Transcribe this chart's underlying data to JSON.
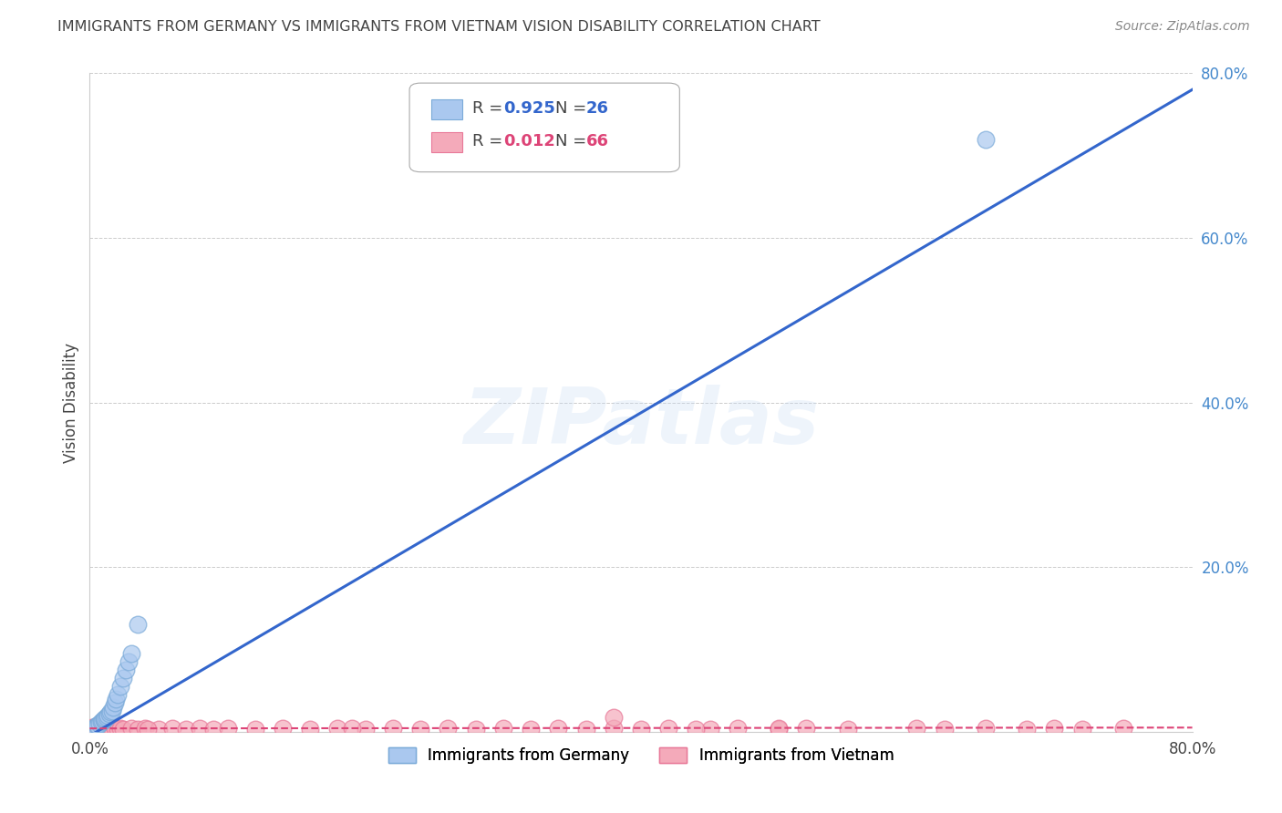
{
  "title": "IMMIGRANTS FROM GERMANY VS IMMIGRANTS FROM VIETNAM VISION DISABILITY CORRELATION CHART",
  "source": "Source: ZipAtlas.com",
  "ylabel": "Vision Disability",
  "watermark": "ZIPatlas",
  "germany_scatter_x": [
    0.003,
    0.004,
    0.005,
    0.006,
    0.007,
    0.008,
    0.009,
    0.01,
    0.01,
    0.011,
    0.012,
    0.013,
    0.014,
    0.015,
    0.016,
    0.017,
    0.018,
    0.019,
    0.02,
    0.022,
    0.024,
    0.026,
    0.028,
    0.03,
    0.035,
    0.65
  ],
  "germany_scatter_y": [
    0.004,
    0.005,
    0.007,
    0.008,
    0.01,
    0.012,
    0.013,
    0.014,
    0.015,
    0.016,
    0.018,
    0.02,
    0.022,
    0.024,
    0.025,
    0.03,
    0.035,
    0.04,
    0.045,
    0.055,
    0.065,
    0.075,
    0.085,
    0.095,
    0.13,
    0.72
  ],
  "vietnam_scatter_x": [
    0.002,
    0.003,
    0.004,
    0.004,
    0.005,
    0.005,
    0.006,
    0.006,
    0.007,
    0.007,
    0.008,
    0.008,
    0.009,
    0.01,
    0.011,
    0.012,
    0.013,
    0.014,
    0.015,
    0.016,
    0.018,
    0.02,
    0.022,
    0.024,
    0.03,
    0.035,
    0.04,
    0.05,
    0.06,
    0.07,
    0.08,
    0.09,
    0.1,
    0.12,
    0.14,
    0.16,
    0.18,
    0.2,
    0.22,
    0.24,
    0.26,
    0.28,
    0.3,
    0.32,
    0.34,
    0.36,
    0.38,
    0.4,
    0.42,
    0.45,
    0.47,
    0.5,
    0.52,
    0.38,
    0.042,
    0.19,
    0.44,
    0.5,
    0.55,
    0.6,
    0.62,
    0.65,
    0.68,
    0.7,
    0.72,
    0.75
  ],
  "vietnam_scatter_y": [
    0.005,
    0.004,
    0.005,
    0.003,
    0.004,
    0.006,
    0.003,
    0.005,
    0.004,
    0.006,
    0.003,
    0.005,
    0.004,
    0.003,
    0.004,
    0.003,
    0.004,
    0.003,
    0.004,
    0.003,
    0.004,
    0.003,
    0.004,
    0.003,
    0.004,
    0.003,
    0.004,
    0.003,
    0.004,
    0.003,
    0.004,
    0.003,
    0.004,
    0.003,
    0.004,
    0.003,
    0.004,
    0.003,
    0.004,
    0.003,
    0.004,
    0.003,
    0.004,
    0.003,
    0.004,
    0.003,
    0.004,
    0.003,
    0.004,
    0.003,
    0.004,
    0.003,
    0.004,
    0.018,
    0.003,
    0.004,
    0.003,
    0.004,
    0.003,
    0.004,
    0.003,
    0.004,
    0.003,
    0.004,
    0.003,
    0.004
  ],
  "germany_line_color": "#3366cc",
  "germany_line_x": [
    0.0,
    0.8
  ],
  "germany_line_y": [
    -0.005,
    0.78
  ],
  "vietnam_line_color": "#dd4477",
  "vietnam_line_x": [
    0.0,
    0.8
  ],
  "vietnam_line_y": [
    0.004,
    0.005
  ],
  "scatter_color_germany": "#aac8ef",
  "scatter_color_vietnam": "#f4aaba",
  "scatter_edge_germany": "#7aaad8",
  "scatter_edge_vietnam": "#e87898",
  "background_color": "#ffffff",
  "grid_color": "#cccccc",
  "title_color": "#444444",
  "right_axis_color": "#4488cc",
  "xlim": [
    0.0,
    0.8
  ],
  "ylim": [
    0.0,
    0.8
  ],
  "legend_r1": "R = 0.925",
  "legend_n1": "N = 26",
  "legend_r2": "R = 0.012",
  "legend_n2": "N = 66",
  "legend_val_color": "#3366cc",
  "legend_r2_val_color": "#dd4477",
  "legend_n2_val_color": "#dd4477",
  "bottom_legend_germany": "Immigrants from Germany",
  "bottom_legend_vietnam": "Immigrants from Vietnam"
}
